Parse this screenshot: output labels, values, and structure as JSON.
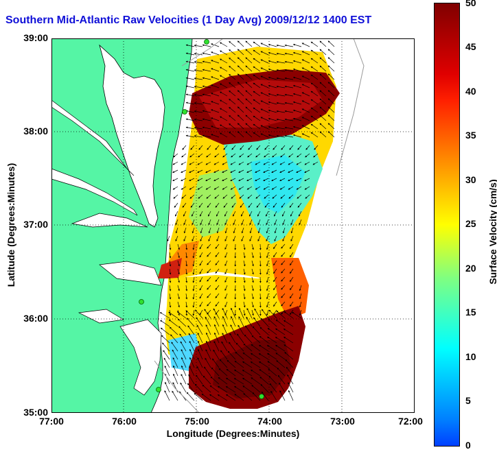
{
  "title": "Southern Mid-Atlantic Raw Velocities (1 Day Avg) 2009/12/12 1400 EST",
  "xlabel": "Longitude (Degrees:Minutes)",
  "ylabel": "Latitude (Degrees:Minutes)",
  "x_ticks": [
    "77:00",
    "76:00",
    "75:00",
    "74:00",
    "73:00",
    "72:00"
  ],
  "y_ticks": [
    "39:00",
    "38:00",
    "37:00",
    "36:00",
    "35:00"
  ],
  "colorbar": {
    "label": "Surface Velocity (cm/s)",
    "ticks": [
      "50",
      "45",
      "40",
      "35",
      "30",
      "25",
      "20",
      "15",
      "10",
      "5",
      "0"
    ],
    "range": [
      0,
      50
    ]
  },
  "colors": {
    "land": "#55f5a5",
    "water": "#ffffff",
    "title": "#1010d8"
  },
  "legend_markers": [
    "green-station-dot"
  ]
}
